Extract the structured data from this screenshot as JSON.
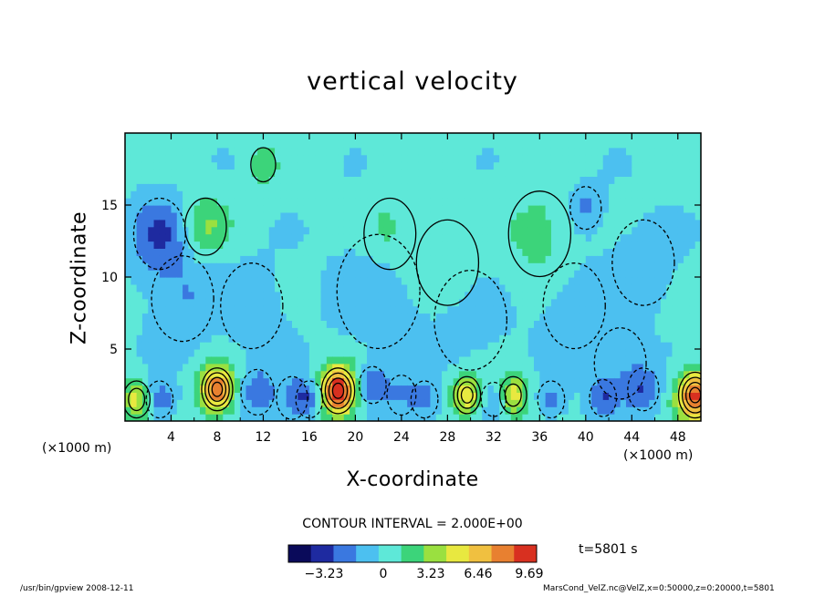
{
  "chart_data": {
    "type": "heatmap",
    "title": "vertical velocity",
    "xlabel": "X-coordinate",
    "ylabel": "Z-coordinate",
    "x_unit_label": "(×1000 m)",
    "xlim": [
      0,
      50
    ],
    "ylim": [
      0,
      20
    ],
    "x_ticks": [
      4,
      8,
      12,
      16,
      20,
      24,
      28,
      32,
      36,
      40,
      44,
      48
    ],
    "y_ticks": [
      5,
      10,
      15
    ],
    "contour_interval_text": "CONTOUR INTERVAL = 2.000E+00",
    "colorbar": {
      "ticks": [
        -3.23,
        0,
        3.23,
        6.46,
        9.69
      ],
      "tick_labels": [
        "−3.23",
        "0",
        "3.23",
        "6.46",
        "9.69"
      ],
      "colors": [
        "#0a0a5a",
        "#1e2aa0",
        "#3a78e0",
        "#4cc0f0",
        "#5ee8d8",
        "#3cd47a",
        "#9ae040",
        "#e8e840",
        "#f0c040",
        "#e88030",
        "#d83020"
      ]
    },
    "colormap": [
      "#1e2aa0",
      "#3a78e0",
      "#4cc0f0",
      "#5ee8d8",
      "#3cd47a",
      "#9ae040",
      "#e8e840",
      "#f0c040",
      "#e88030",
      "#d83020"
    ],
    "value_range": [
      -4,
      12
    ],
    "features": [
      {
        "x": 1,
        "z": 1.5,
        "w": 5,
        "r": 1.3
      },
      {
        "x": 3,
        "z": 1.5,
        "w": -3.5,
        "r": 1.3
      },
      {
        "x": 8,
        "z": 2.2,
        "w": 9,
        "r": 1.5
      },
      {
        "x": 11.5,
        "z": 2,
        "w": -3,
        "r": 1.6
      },
      {
        "x": 14.5,
        "z": 1.6,
        "w": -2,
        "r": 1.5
      },
      {
        "x": 16,
        "z": 1.5,
        "w": -3.5,
        "r": 1.3
      },
      {
        "x": 18.5,
        "z": 2.1,
        "w": 11,
        "r": 1.6
      },
      {
        "x": 21.5,
        "z": 2.5,
        "w": -3.5,
        "r": 1.3
      },
      {
        "x": 24,
        "z": 1.8,
        "w": -2,
        "r": 1.4
      },
      {
        "x": 26,
        "z": 1.5,
        "w": -2.5,
        "r": 1.3
      },
      {
        "x": 29.7,
        "z": 1.8,
        "w": 6,
        "r": 1.3
      },
      {
        "x": 32,
        "z": 1.5,
        "w": -2,
        "r": 1.2
      },
      {
        "x": 33.7,
        "z": 1.8,
        "w": 5.5,
        "r": 1.3
      },
      {
        "x": 37,
        "z": 1.5,
        "w": -2.5,
        "r": 1.3
      },
      {
        "x": 41.5,
        "z": 1.6,
        "w": -3,
        "r": 1.3
      },
      {
        "x": 45,
        "z": 2.2,
        "w": -3,
        "r": 1.5
      },
      {
        "x": 49.5,
        "z": 1.8,
        "w": 10,
        "r": 1.6
      },
      {
        "x": 3,
        "z": 13,
        "w": -3.5,
        "r": 2.5
      },
      {
        "x": 7,
        "z": 13.5,
        "w": 3,
        "r": 2
      },
      {
        "x": 12,
        "z": 17.8,
        "w": 2.5,
        "r": 1.2
      },
      {
        "x": 5,
        "z": 8.5,
        "w": -2,
        "r": 3
      },
      {
        "x": 11,
        "z": 8,
        "w": -1.5,
        "r": 3
      },
      {
        "x": 22,
        "z": 9,
        "w": -1.8,
        "r": 4
      },
      {
        "x": 23,
        "z": 13,
        "w": 2,
        "r": 2.5
      },
      {
        "x": 30,
        "z": 7,
        "w": -1.2,
        "r": 3.5
      },
      {
        "x": 36,
        "z": 13,
        "w": 2,
        "r": 3
      },
      {
        "x": 40,
        "z": 14.8,
        "w": -2.5,
        "r": 1.5
      },
      {
        "x": 39,
        "z": 8,
        "w": -1.5,
        "r": 3
      },
      {
        "x": 45,
        "z": 11,
        "w": -1.5,
        "r": 3
      },
      {
        "x": 43,
        "z": 4,
        "w": -1.8,
        "r": 2.5
      },
      {
        "x": 28,
        "z": 11,
        "w": 1.5,
        "r": 3
      }
    ]
  },
  "footer": {
    "time_label": "t=5801 s",
    "program": "/usr/bin/gpview   2008-12-11",
    "source": "MarsCond_VelZ.nc@VelZ,x=0:50000,z=0:20000,t=5801"
  }
}
